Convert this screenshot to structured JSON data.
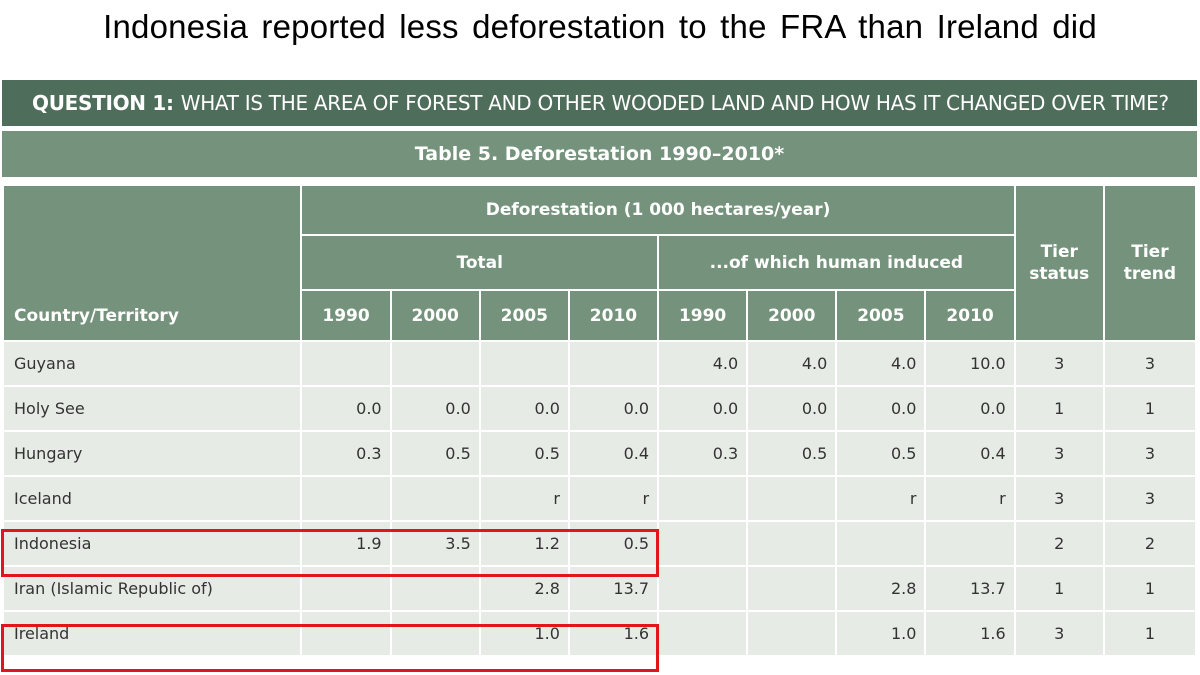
{
  "slide": {
    "title": "Indonesia  reported  less  deforestation  to the FRA than Ireland  did"
  },
  "question_bar": {
    "prefix": "QUESTION 1:",
    "text": "WHAT IS THE AREA OF FOREST AND OTHER WOODED LAND AND HOW HAS IT CHANGED OVER TIME?"
  },
  "table": {
    "title": "Table 5. Deforestation 1990–2010*",
    "group_header": "Deforestation (1 000 hectares/year)",
    "total_header": "Total",
    "human_header": "...of which human induced",
    "country_header": "Country/Territory",
    "tier_status_header": [
      "Tier",
      "status"
    ],
    "tier_trend_header": [
      "Tier",
      "trend"
    ],
    "years": [
      "1990",
      "2000",
      "2005",
      "2010"
    ],
    "rows": [
      {
        "country": "Guyana",
        "total": [
          "",
          "",
          "",
          ""
        ],
        "human": [
          "4.0",
          "4.0",
          "4.0",
          "10.0"
        ],
        "tier_status": "3",
        "tier_trend": "3"
      },
      {
        "country": "Holy See",
        "total": [
          "0.0",
          "0.0",
          "0.0",
          "0.0"
        ],
        "human": [
          "0.0",
          "0.0",
          "0.0",
          "0.0"
        ],
        "tier_status": "1",
        "tier_trend": "1"
      },
      {
        "country": "Hungary",
        "total": [
          "0.3",
          "0.5",
          "0.5",
          "0.4"
        ],
        "human": [
          "0.3",
          "0.5",
          "0.5",
          "0.4"
        ],
        "tier_status": "3",
        "tier_trend": "3"
      },
      {
        "country": "Iceland",
        "total": [
          "",
          "",
          "r",
          "r"
        ],
        "human": [
          "",
          "",
          "r",
          "r"
        ],
        "tier_status": "3",
        "tier_trend": "3"
      },
      {
        "country": "Indonesia",
        "total": [
          "1.9",
          "3.5",
          "1.2",
          "0.5"
        ],
        "human": [
          "",
          "",
          "",
          ""
        ],
        "tier_status": "2",
        "tier_trend": "2"
      },
      {
        "country": "Iran (Islamic Republic of)",
        "total": [
          "",
          "",
          "2.8",
          "13.7"
        ],
        "human": [
          "",
          "",
          "2.8",
          "13.7"
        ],
        "tier_status": "1",
        "tier_trend": "1"
      },
      {
        "country": "Ireland",
        "total": [
          "",
          "",
          "1.0",
          "1.6"
        ],
        "human": [
          "",
          "",
          "1.0",
          "1.6"
        ],
        "tier_status": "3",
        "tier_trend": "1"
      }
    ]
  },
  "colors": {
    "question_bar": "#4f6d5b",
    "header_green": "#75937c",
    "row_background": "#e7ebe6",
    "highlight": "#e0161c"
  }
}
